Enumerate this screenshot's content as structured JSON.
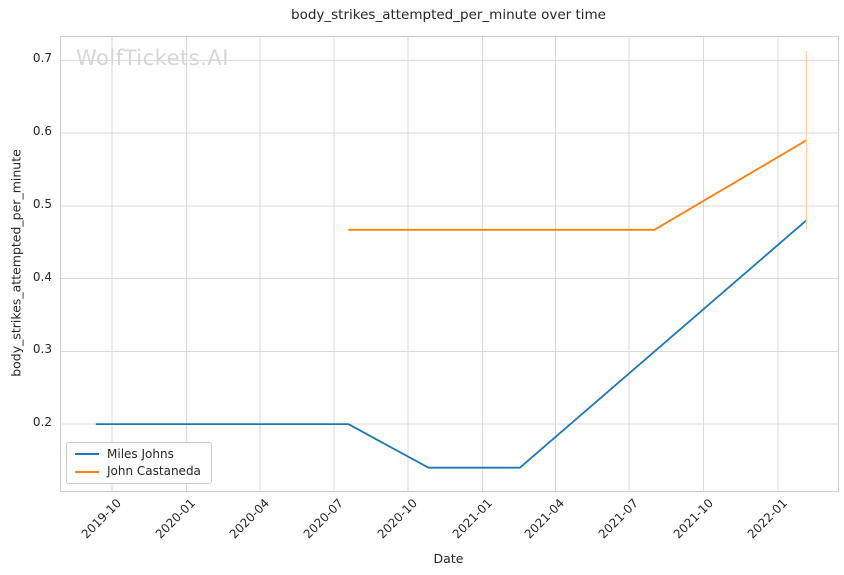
{
  "watermark": {
    "text": "WolfTickets.AI",
    "color": "#d6d6d6"
  },
  "chart_data": {
    "type": "line",
    "title": "body_strikes_attempted_per_minute over time",
    "xlabel": "Date",
    "ylabel": "body_strikes_attempted_per_minute",
    "grid": true,
    "legend_position": "lower left",
    "xlim": [
      "2019-07-30",
      "2022-03-16"
    ],
    "ylim": [
      0.108,
      0.732
    ],
    "grid_color": "#d9d9d9",
    "x_ticks": [
      {
        "date": "2019-10-01",
        "label": "2019-10"
      },
      {
        "date": "2020-01-01",
        "label": "2020-01"
      },
      {
        "date": "2020-04-01",
        "label": "2020-04"
      },
      {
        "date": "2020-07-01",
        "label": "2020-07"
      },
      {
        "date": "2020-10-01",
        "label": "2020-10"
      },
      {
        "date": "2021-01-01",
        "label": "2021-01"
      },
      {
        "date": "2021-04-01",
        "label": "2021-04"
      },
      {
        "date": "2021-07-01",
        "label": "2021-07"
      },
      {
        "date": "2021-10-01",
        "label": "2021-10"
      },
      {
        "date": "2022-01-01",
        "label": "2022-01"
      }
    ],
    "y_ticks": [
      {
        "value": 0.2,
        "label": "0.2"
      },
      {
        "value": 0.3,
        "label": "0.3"
      },
      {
        "value": 0.4,
        "label": "0.4"
      },
      {
        "value": 0.5,
        "label": "0.5"
      },
      {
        "value": 0.6,
        "label": "0.6"
      },
      {
        "value": 0.7,
        "label": "0.7"
      }
    ],
    "series": [
      {
        "name": "Miles Johns",
        "color": "#1f77b4",
        "points": [
          {
            "date": "2019-09-11",
            "value": 0.2
          },
          {
            "date": "2020-07-19",
            "value": 0.2
          },
          {
            "date": "2020-10-26",
            "value": 0.14
          },
          {
            "date": "2021-02-16",
            "value": 0.14
          },
          {
            "date": "2022-02-05",
            "value": 0.48
          }
        ]
      },
      {
        "name": "John Castaneda",
        "color": "#ff7f0e",
        "points": [
          {
            "date": "2020-07-19",
            "value": 0.467
          },
          {
            "date": "2021-08-01",
            "value": 0.467
          },
          {
            "date": "2022-02-05",
            "value": 0.59
          }
        ],
        "error_bar": {
          "date": "2022-02-05",
          "low": 0.467,
          "high": 0.713,
          "color": "#ffd3a8"
        }
      }
    ]
  }
}
